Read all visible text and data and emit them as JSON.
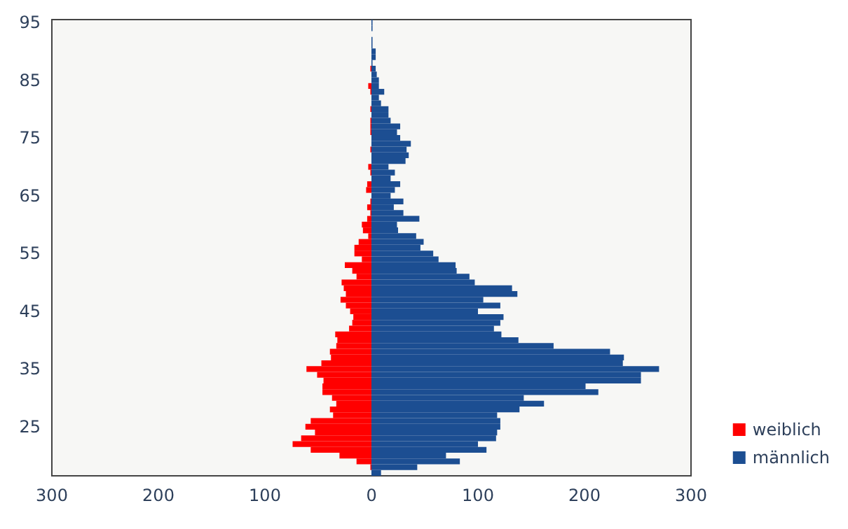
{
  "chart_data": {
    "type": "bar",
    "orientation": "horizontal",
    "categories": [
      "95",
      null,
      null,
      null,
      null,
      null,
      null,
      null,
      null,
      null,
      "85",
      null,
      null,
      null,
      null,
      null,
      null,
      null,
      null,
      null,
      "75",
      null,
      null,
      null,
      null,
      null,
      null,
      null,
      null,
      null,
      "65",
      null,
      null,
      null,
      null,
      null,
      null,
      null,
      null,
      null,
      "55",
      null,
      null,
      null,
      null,
      null,
      null,
      null,
      null,
      null,
      "45",
      null,
      null,
      null,
      null,
      null,
      null,
      null,
      null,
      null,
      "35",
      null,
      null,
      null,
      null,
      null,
      null,
      null,
      null,
      null,
      "25",
      null,
      null,
      null,
      null,
      null,
      null,
      null,
      null
    ],
    "series": [
      {
        "name": "weiblich",
        "color": "#ff0000",
        "values": [
          0,
          0,
          0,
          0,
          0,
          0,
          0,
          0,
          -1,
          0,
          0,
          -3,
          -1,
          0,
          0,
          -1,
          0,
          -1,
          -1,
          -1,
          0,
          0,
          -1,
          0,
          0,
          -3,
          -1,
          0,
          -4,
          -5,
          0,
          -1,
          -4,
          -1,
          -4,
          -9,
          -8,
          -3,
          -12,
          -16,
          -16,
          -9,
          -25,
          -18,
          -14,
          -28,
          -26,
          -24,
          -29,
          -24,
          -20,
          -17,
          -18,
          -21,
          -34,
          -32,
          -33,
          -39,
          -38,
          -47,
          -61,
          -51,
          -45,
          -46,
          -46,
          -37,
          -33,
          -39,
          -36,
          -57,
          -62,
          -53,
          -66,
          -74,
          -57,
          -30,
          -14,
          -1,
          0
        ]
      },
      {
        "name": "männlich",
        "color": "#1c4e92",
        "values": [
          1,
          1,
          0,
          1,
          1,
          4,
          4,
          1,
          4,
          5,
          7,
          7,
          12,
          7,
          9,
          16,
          16,
          18,
          27,
          24,
          27,
          37,
          33,
          35,
          32,
          16,
          22,
          18,
          27,
          22,
          18,
          30,
          21,
          30,
          45,
          24,
          25,
          42,
          49,
          46,
          58,
          63,
          79,
          80,
          92,
          97,
          132,
          137,
          105,
          121,
          100,
          124,
          121,
          115,
          122,
          138,
          171,
          224,
          237,
          236,
          270,
          253,
          253,
          201,
          213,
          143,
          162,
          139,
          118,
          121,
          121,
          118,
          117,
          100,
          108,
          70,
          83,
          43,
          9
        ]
      }
    ],
    "xlim": [
      -300,
      300
    ],
    "xticks": [
      {
        "value": -300,
        "label": "300"
      },
      {
        "value": -200,
        "label": "200"
      },
      {
        "value": -100,
        "label": "100"
      },
      0,
      100,
      200,
      300
    ],
    "stacked": true,
    "legend": "right"
  }
}
